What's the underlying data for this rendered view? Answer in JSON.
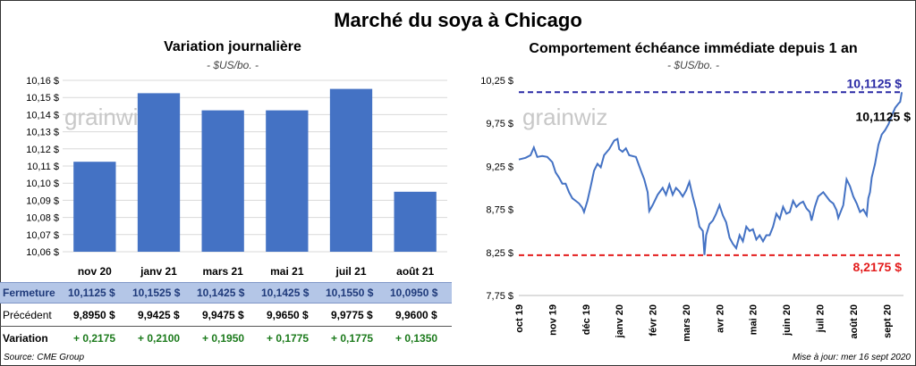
{
  "title": "Marché du soya à Chicago",
  "watermark": "grainwiz",
  "left_chart": {
    "title": "Variation journalière",
    "subtitle": "- $US/bo. -",
    "chart_data": {
      "type": "bar",
      "categories": [
        "nov 20",
        "janv 21",
        "mars 21",
        "mai 21",
        "juil 21",
        "août 21"
      ],
      "values": [
        10.1125,
        10.1525,
        10.1425,
        10.1425,
        10.155,
        10.095
      ],
      "ylim": [
        10.06,
        10.16
      ],
      "yticks": [
        "10,06 $",
        "10,07 $",
        "10,08 $",
        "10,09 $",
        "10,10 $",
        "10,11 $",
        "10,12 $",
        "10,13 $",
        "10,14 $",
        "10,15 $",
        "10,16 $"
      ],
      "bar_color": "#4472c4",
      "grid": true
    }
  },
  "table": {
    "rows": [
      {
        "label": "Fermeture",
        "values": [
          "10,1125 $",
          "10,1525 $",
          "10,1425 $",
          "10,1425 $",
          "10,1550 $",
          "10,0950 $"
        ]
      },
      {
        "label": "Précédent",
        "values": [
          "9,8950 $",
          "9,9425 $",
          "9,9475 $",
          "9,9650 $",
          "9,9775 $",
          "9,9600 $"
        ]
      },
      {
        "label": "Variation",
        "values": [
          "+ 0,2175",
          "+ 0,2100",
          "+ 0,1950",
          "+ 0,1775",
          "+ 0,1775",
          "+ 0,1350"
        ]
      }
    ]
  },
  "right_chart": {
    "title": "Comportement échéance immédiate depuis 1 an",
    "subtitle": "- $US/bo. -",
    "chart_data": {
      "type": "line",
      "ylim": [
        7.75,
        10.25
      ],
      "yticks": [
        "7,75 $",
        "8,25 $",
        "8,75 $",
        "9,25 $",
        "9,75 $",
        "10,25 $"
      ],
      "xticks": [
        "oct 19",
        "nov 19",
        "déc 19",
        "janv 20",
        "févr 20",
        "mars 20",
        "avr 20",
        "mai 20",
        "juin 20",
        "juil 20",
        "août 20",
        "sept 20"
      ],
      "x_range": [
        0,
        11.5
      ],
      "series": [
        {
          "values": [
            [
              0,
              9.33
            ],
            [
              0.2,
              9.35
            ],
            [
              0.35,
              9.38
            ],
            [
              0.45,
              9.47
            ],
            [
              0.55,
              9.36
            ],
            [
              0.7,
              9.37
            ],
            [
              0.85,
              9.36
            ],
            [
              1.0,
              9.3
            ],
            [
              1.1,
              9.18
            ],
            [
              1.2,
              9.12
            ],
            [
              1.3,
              9.05
            ],
            [
              1.4,
              9.05
            ],
            [
              1.5,
              8.95
            ],
            [
              1.6,
              8.88
            ],
            [
              1.7,
              8.85
            ],
            [
              1.8,
              8.82
            ],
            [
              1.9,
              8.77
            ],
            [
              1.95,
              8.72
            ],
            [
              2.05,
              8.85
            ],
            [
              2.15,
              9.02
            ],
            [
              2.25,
              9.2
            ],
            [
              2.35,
              9.28
            ],
            [
              2.45,
              9.24
            ],
            [
              2.55,
              9.38
            ],
            [
              2.7,
              9.45
            ],
            [
              2.85,
              9.55
            ],
            [
              2.95,
              9.57
            ],
            [
              3.0,
              9.45
            ],
            [
              3.1,
              9.42
            ],
            [
              3.2,
              9.46
            ],
            [
              3.3,
              9.38
            ],
            [
              3.5,
              9.36
            ],
            [
              3.65,
              9.2
            ],
            [
              3.75,
              9.1
            ],
            [
              3.85,
              8.95
            ],
            [
              3.9,
              8.73
            ],
            [
              4.0,
              8.8
            ],
            [
              4.15,
              8.92
            ],
            [
              4.3,
              9.0
            ],
            [
              4.4,
              8.92
            ],
            [
              4.5,
              9.04
            ],
            [
              4.6,
              8.92
            ],
            [
              4.7,
              9.0
            ],
            [
              4.8,
              8.96
            ],
            [
              4.9,
              8.9
            ],
            [
              5.0,
              8.97
            ],
            [
              5.1,
              9.07
            ],
            [
              5.2,
              8.9
            ],
            [
              5.3,
              8.75
            ],
            [
              5.4,
              8.55
            ],
            [
              5.5,
              8.5
            ],
            [
              5.55,
              8.22
            ],
            [
              5.6,
              8.45
            ],
            [
              5.7,
              8.58
            ],
            [
              5.8,
              8.62
            ],
            [
              5.9,
              8.7
            ],
            [
              6.0,
              8.8
            ],
            [
              6.1,
              8.68
            ],
            [
              6.2,
              8.6
            ],
            [
              6.3,
              8.42
            ],
            [
              6.4,
              8.35
            ],
            [
              6.5,
              8.3
            ],
            [
              6.6,
              8.45
            ],
            [
              6.7,
              8.38
            ],
            [
              6.8,
              8.55
            ],
            [
              6.9,
              8.5
            ],
            [
              7.0,
              8.52
            ],
            [
              7.1,
              8.4
            ],
            [
              7.2,
              8.45
            ],
            [
              7.3,
              8.38
            ],
            [
              7.4,
              8.45
            ],
            [
              7.5,
              8.45
            ],
            [
              7.6,
              8.55
            ],
            [
              7.7,
              8.7
            ],
            [
              7.8,
              8.64
            ],
            [
              7.9,
              8.78
            ],
            [
              8.0,
              8.7
            ],
            [
              8.1,
              8.72
            ],
            [
              8.2,
              8.85
            ],
            [
              8.3,
              8.78
            ],
            [
              8.4,
              8.82
            ],
            [
              8.5,
              8.84
            ],
            [
              8.6,
              8.76
            ],
            [
              8.7,
              8.72
            ],
            [
              8.75,
              8.62
            ],
            [
              8.85,
              8.78
            ],
            [
              8.95,
              8.9
            ],
            [
              9.1,
              8.95
            ],
            [
              9.2,
              8.9
            ],
            [
              9.3,
              8.85
            ],
            [
              9.4,
              8.82
            ],
            [
              9.5,
              8.74
            ],
            [
              9.55,
              8.65
            ],
            [
              9.7,
              8.8
            ],
            [
              9.8,
              9.1
            ],
            [
              9.9,
              9.02
            ],
            [
              10.0,
              8.9
            ],
            [
              10.1,
              8.82
            ],
            [
              10.2,
              8.72
            ],
            [
              10.3,
              8.75
            ],
            [
              10.4,
              8.68
            ],
            [
              10.45,
              8.88
            ],
            [
              10.5,
              8.95
            ],
            [
              10.55,
              9.12
            ],
            [
              10.65,
              9.28
            ],
            [
              10.75,
              9.5
            ],
            [
              10.85,
              9.62
            ],
            [
              10.95,
              9.67
            ],
            [
              11.05,
              9.74
            ],
            [
              11.15,
              9.84
            ],
            [
              11.25,
              9.93
            ],
            [
              11.35,
              9.98
            ],
            [
              11.4,
              10.0
            ],
            [
              11.45,
              10.1125
            ]
          ]
        }
      ],
      "annotations": [
        {
          "label": "10,1125 $",
          "value": 10.1125,
          "color": "#2a2aa5",
          "style": "dashed"
        },
        {
          "label": "10,1125 $",
          "value": 10.1125,
          "color": "#000000",
          "style": "point-label"
        },
        {
          "label": "8,2175 $",
          "value": 8.2175,
          "color": "#e31b1b",
          "style": "dashed"
        }
      ],
      "line_color": "#4472c4",
      "grid": false
    }
  },
  "footer": {
    "source": "Source: CME Group",
    "updated": "Mise à jour: mer 16 sept 2020"
  }
}
